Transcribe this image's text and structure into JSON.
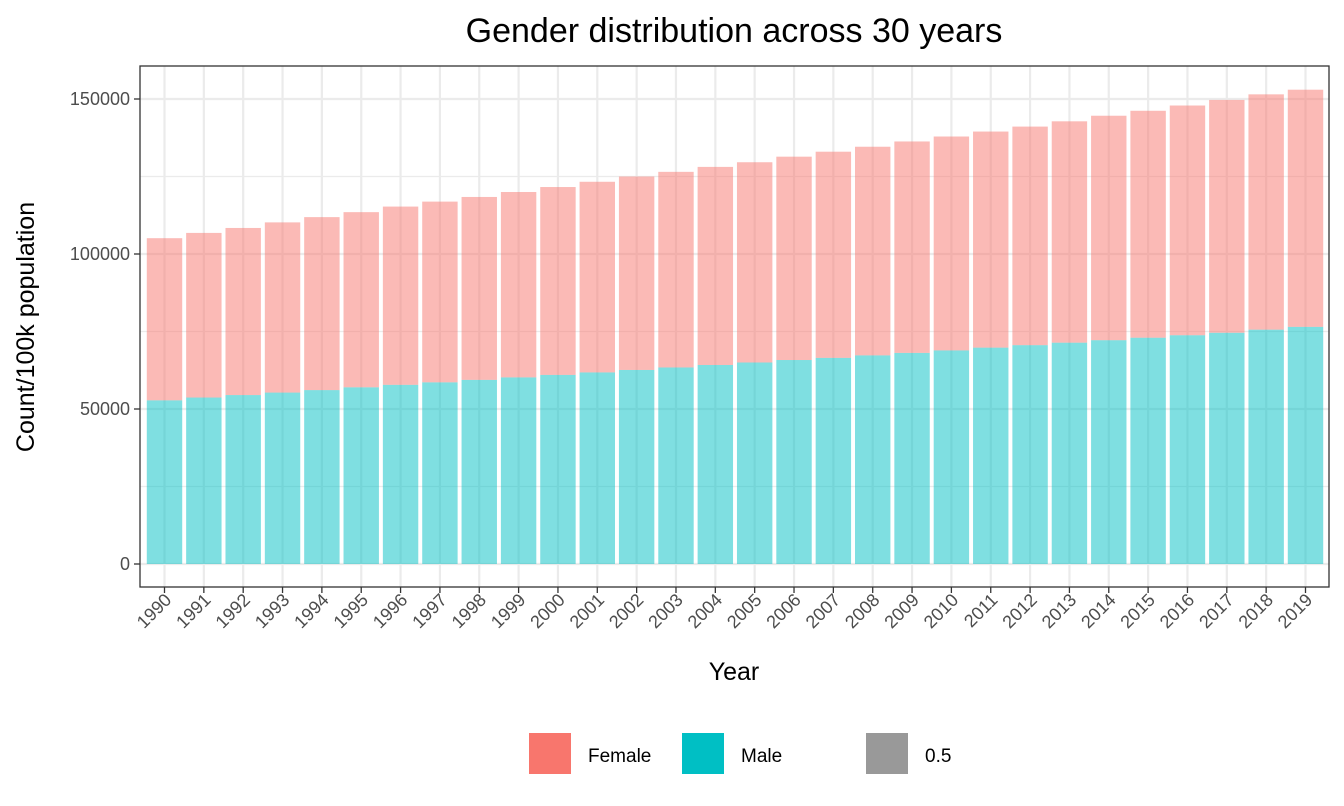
{
  "chart_data": {
    "type": "bar",
    "stacked": true,
    "title": "Gender distribution across 30 years",
    "xlabel": "Year",
    "ylabel": "Count/100k population",
    "categories": [
      "1990",
      "1991",
      "1992",
      "1993",
      "1994",
      "1995",
      "1996",
      "1997",
      "1998",
      "1999",
      "2000",
      "2001",
      "2002",
      "2003",
      "2004",
      "2005",
      "2006",
      "2007",
      "2008",
      "2009",
      "2010",
      "2011",
      "2012",
      "2013",
      "2014",
      "2015",
      "2016",
      "2017",
      "2018",
      "2019"
    ],
    "series": [
      {
        "name": "Male",
        "color": "#00BFC4",
        "values": [
          52800,
          53700,
          54500,
          55300,
          56100,
          57000,
          57800,
          58600,
          59400,
          60200,
          61000,
          61800,
          62600,
          63400,
          64200,
          65000,
          65800,
          66500,
          67300,
          68100,
          68900,
          69800,
          70600,
          71400,
          72200,
          73000,
          73800,
          74600,
          75600,
          76500
        ]
      },
      {
        "name": "Female",
        "color": "#F8766D",
        "values": [
          52300,
          53100,
          53900,
          54900,
          55800,
          56500,
          57500,
          58300,
          59000,
          59800,
          60600,
          61500,
          62400,
          63100,
          63900,
          64600,
          65600,
          66500,
          67300,
          68200,
          69000,
          69700,
          70500,
          71400,
          72400,
          73200,
          74100,
          75100,
          75900,
          76500
        ]
      }
    ],
    "ylim": [
      0,
      160000
    ],
    "yticks": [
      0,
      50000,
      100000,
      150000
    ],
    "ytick_labels": [
      "0",
      "50000",
      "100000",
      "150000"
    ],
    "grid": true,
    "bar_alpha": 0.5,
    "legend": {
      "position": "bottom",
      "items": [
        {
          "label": "Female",
          "color": "#F8766D"
        },
        {
          "label": "Male",
          "color": "#00BFC4"
        },
        {
          "label": "0.5",
          "color": "#999999"
        }
      ]
    }
  }
}
